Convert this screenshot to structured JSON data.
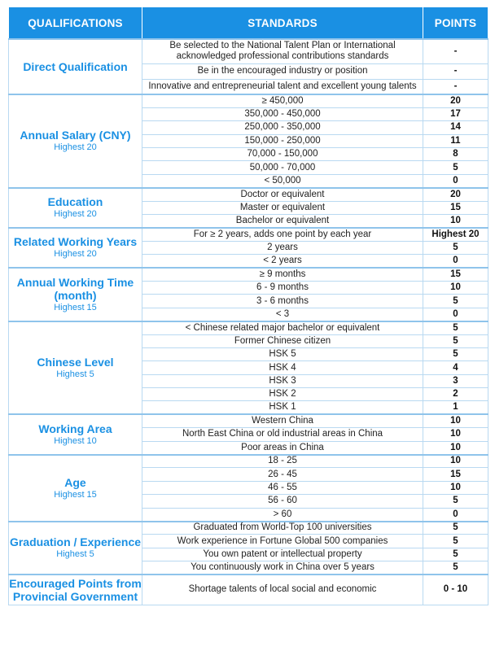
{
  "header": {
    "qualifications": "QUALIFICATIONS",
    "standards": "STANDARDS",
    "points": "POINTS"
  },
  "groups": [
    {
      "title": "Direct Qualification",
      "sub": "",
      "rows": [
        {
          "standard": "Be selected to the National Talent Plan or International acknowledged professional contributions standards",
          "points": "-"
        },
        {
          "standard": "Be in the encouraged industry or position",
          "points": "-"
        },
        {
          "standard": "Innovative and entrepreneurial talent and excellent young talents",
          "points": "-"
        }
      ]
    },
    {
      "title": "Annual Salary (CNY)",
      "sub": "Highest 20",
      "rows": [
        {
          "standard": "≥ 450,000",
          "points": "20"
        },
        {
          "standard": "350,000 - 450,000",
          "points": "17"
        },
        {
          "standard": "250,000 - 350,000",
          "points": "14"
        },
        {
          "standard": "150,000 - 250,000",
          "points": "11"
        },
        {
          "standard": "70,000 - 150,000",
          "points": "8"
        },
        {
          "standard": "50,000 - 70,000",
          "points": "5"
        },
        {
          "standard": "< 50,000",
          "points": "0"
        }
      ]
    },
    {
      "title": "Education",
      "sub": "Highest 20",
      "rows": [
        {
          "standard": "Doctor or equivalent",
          "points": "20"
        },
        {
          "standard": "Master or equivalent",
          "points": "15"
        },
        {
          "standard": "Bachelor or equivalent",
          "points": "10"
        }
      ]
    },
    {
      "title": "Related Working Years",
      "sub": "Highest 20",
      "rows": [
        {
          "standard": "For ≥ 2 years, adds one point by each year",
          "points": "Highest 20"
        },
        {
          "standard": "2 years",
          "points": "5"
        },
        {
          "standard": "< 2 years",
          "points": "0"
        }
      ]
    },
    {
      "title": "Annual Working Time (month)",
      "sub": "Highest 15",
      "rows": [
        {
          "standard": "≥ 9 months",
          "points": "15"
        },
        {
          "standard": "6 - 9 months",
          "points": "10"
        },
        {
          "standard": "3 - 6 months",
          "points": "5"
        },
        {
          "standard": "< 3",
          "points": "0"
        }
      ]
    },
    {
      "title": "Chinese Level",
      "sub": "Highest 5",
      "rows": [
        {
          "standard": "< Chinese related major bachelor or equivalent",
          "points": "5"
        },
        {
          "standard": "Former Chinese citizen",
          "points": "5"
        },
        {
          "standard": "HSK 5",
          "points": "5"
        },
        {
          "standard": "HSK 4",
          "points": "4"
        },
        {
          "standard": "HSK 3",
          "points": "3"
        },
        {
          "standard": "HSK 2",
          "points": "2"
        },
        {
          "standard": "HSK 1",
          "points": "1"
        }
      ]
    },
    {
      "title": "Working Area",
      "sub": "Highest 10",
      "rows": [
        {
          "standard": "Western China",
          "points": "10"
        },
        {
          "standard": "North East China or old industrial areas in China",
          "points": "10"
        },
        {
          "standard": "Poor areas in China",
          "points": "10"
        }
      ]
    },
    {
      "title": "Age",
      "sub": "Highest 15",
      "rows": [
        {
          "standard": "18 - 25",
          "points": "10"
        },
        {
          "standard": "26 - 45",
          "points": "15"
        },
        {
          "standard": "46 - 55",
          "points": "10"
        },
        {
          "standard": "56 - 60",
          "points": "5"
        },
        {
          "standard": "> 60",
          "points": "0"
        }
      ]
    },
    {
      "title": "Graduation / Experience",
      "sub": "Highest 5",
      "rows": [
        {
          "standard": "Graduated from World-Top 100 universities",
          "points": "5"
        },
        {
          "standard": "Work experience in Fortune Global 500 companies",
          "points": "5"
        },
        {
          "standard": "You own patent or intellectual property",
          "points": "5"
        },
        {
          "standard": "You continuously work in China over 5 years",
          "points": "5"
        }
      ]
    },
    {
      "title": "Encouraged Points from Provincial Government",
      "sub": "",
      "rows": [
        {
          "standard": "Shortage talents of local social and economic",
          "points": "0 - 10"
        }
      ]
    }
  ]
}
